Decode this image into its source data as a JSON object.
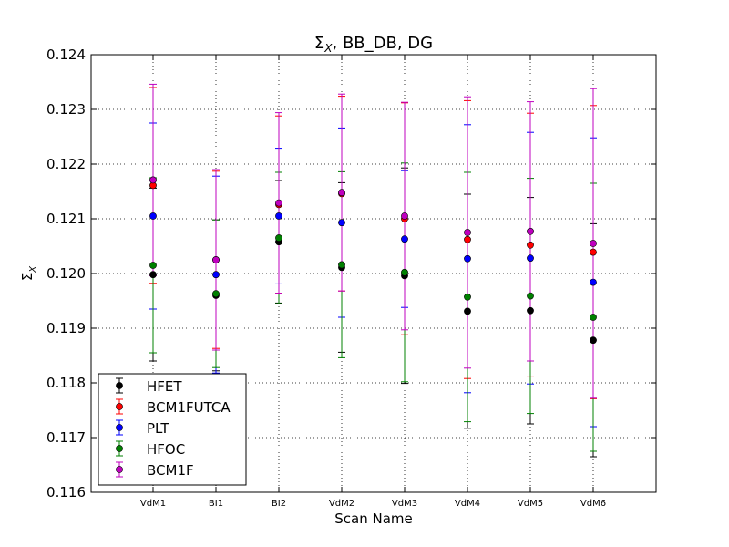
{
  "chart_data": {
    "type": "scatter",
    "title": "Σ_X, BB_DB, DG",
    "title_parts": {
      "symbol": "Σ",
      "subscript": "X",
      "rest": ", BB_DB, DG"
    },
    "xlabel": "Scan Name",
    "ylabel": "Σ_X",
    "ylabel_parts": {
      "symbol": "Σ",
      "subscript": "X"
    },
    "categories": [
      "VdM1",
      "BI1",
      "BI2",
      "VdM2",
      "VdM3",
      "VdM4",
      "VdM5",
      "VdM6"
    ],
    "ylim": [
      0.116,
      0.124
    ],
    "yticks": [
      "0.116",
      "0.117",
      "0.118",
      "0.119",
      "0.120",
      "0.121",
      "0.122",
      "0.123",
      "0.124"
    ],
    "grid": true,
    "legend_position": "bottom-left",
    "error_bars": true,
    "series": [
      {
        "name": "HFET",
        "color": "#000000",
        "values": [
          0.11998,
          0.1196,
          0.12058,
          0.12011,
          0.11996,
          0.11931,
          0.11932,
          0.11878
        ],
        "errors": [
          0.00158,
          0.00138,
          0.00112,
          0.00155,
          0.00197,
          0.00214,
          0.00207,
          0.00213
        ]
      },
      {
        "name": "BCM1FUTCA",
        "color": "#ff0000",
        "values": [
          0.12161,
          0.12025,
          0.12126,
          0.12146,
          0.121,
          0.12062,
          0.12052,
          0.12039
        ],
        "errors": [
          0.00179,
          0.00162,
          0.00162,
          0.00178,
          0.00212,
          0.00254,
          0.00241,
          0.00268
        ]
      },
      {
        "name": "PLT",
        "color": "#0000ff",
        "values": [
          0.12105,
          0.11998,
          0.12105,
          0.12093,
          0.12063,
          0.12027,
          0.12028,
          0.11984
        ],
        "errors": [
          0.0017,
          0.0018,
          0.00124,
          0.00173,
          0.00125,
          0.00245,
          0.0023,
          0.00264
        ]
      },
      {
        "name": "HFOC",
        "color": "#008000",
        "values": [
          0.12015,
          0.11963,
          0.12065,
          0.12016,
          0.12002,
          0.11957,
          0.11959,
          0.1192
        ],
        "errors": [
          0.0016,
          0.00135,
          0.0012,
          0.0017,
          0.002,
          0.00228,
          0.00215,
          0.00245
        ]
      },
      {
        "name": "BCM1F",
        "color": "#bf00bf",
        "values": [
          0.12171,
          0.12025,
          0.12129,
          0.12148,
          0.12105,
          0.12075,
          0.12077,
          0.12055
        ],
        "errors": [
          0.00175,
          0.00165,
          0.00165,
          0.0018,
          0.00208,
          0.00248,
          0.00237,
          0.00283
        ]
      }
    ]
  }
}
